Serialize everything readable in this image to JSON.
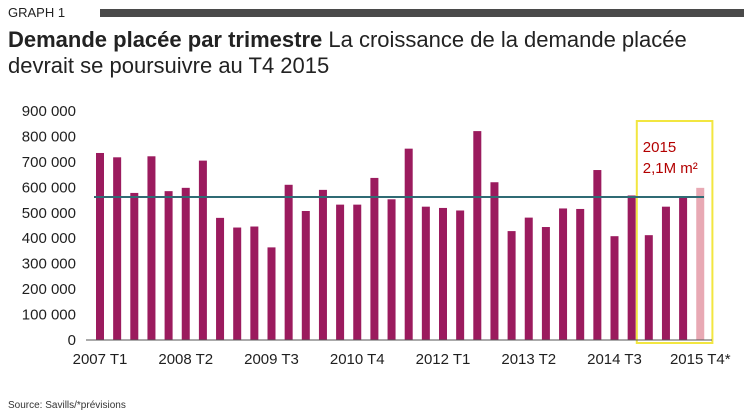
{
  "header": {
    "graph_label": "GRAPH 1",
    "title_bold": "Demande placée par trimestre",
    "title_rest": "La croissance de la demande placée devrait se poursuivre au T4 2015"
  },
  "footer": {
    "source": "Source: Savills/*prévisions"
  },
  "colors": {
    "bar": "#9b1b5e",
    "forecast_bar": "#e8a9b4",
    "average_line": "#2f6b74",
    "highlight_box": "#f2e640",
    "annotation": "#b30000"
  },
  "chart_data": {
    "type": "bar",
    "categories": [
      "2007 T1",
      "2007 T2",
      "2007 T3",
      "2007 T4",
      "2008 T1",
      "2008 T2",
      "2008 T3",
      "2008 T4",
      "2009 T1",
      "2009 T2",
      "2009 T3",
      "2009 T4",
      "2010 T1",
      "2010 T2",
      "2010 T3",
      "2010 T4",
      "2011 T1",
      "2011 T2",
      "2011 T3",
      "2011 T4",
      "2012 T1",
      "2012 T2",
      "2012 T3",
      "2012 T4",
      "2013 T1",
      "2013 T2",
      "2013 T3",
      "2013 T4",
      "2014 T1",
      "2014 T2",
      "2014 T3",
      "2014 T4",
      "2015 T1",
      "2015 T2",
      "2015 T3",
      "2015 T4*"
    ],
    "values": [
      735000,
      718000,
      578000,
      722000,
      585000,
      598000,
      705000,
      480000,
      442000,
      446000,
      364000,
      610000,
      507000,
      590000,
      532000,
      532000,
      637000,
      553000,
      752000,
      524000,
      519000,
      509000,
      821000,
      620000,
      428000,
      481000,
      444000,
      517000,
      515000,
      668000,
      408000,
      568000,
      412000,
      524000,
      563000,
      598000
    ],
    "forecast_from_index": 35,
    "average_line_value": 562000,
    "x_tick_labels": [
      {
        "index": 0,
        "label": "2007 T1"
      },
      {
        "index": 5,
        "label": "2008 T2"
      },
      {
        "index": 10,
        "label": "2009 T3"
      },
      {
        "index": 15,
        "label": "2010 T4"
      },
      {
        "index": 20,
        "label": "2012 T1"
      },
      {
        "index": 25,
        "label": "2013 T2"
      },
      {
        "index": 30,
        "label": "2014 T3"
      },
      {
        "index": 35,
        "label": "2015 T4*"
      }
    ],
    "y_tick_labels": [
      "0",
      "100 000",
      "200 000",
      "300 000",
      "400 000",
      "500 000",
      "600 000",
      "700 000",
      "800 000",
      "900 000"
    ],
    "ylim": [
      0,
      900000
    ],
    "grid": false,
    "highlight": {
      "from_index": 32,
      "to_index": 35,
      "label_year": "2015",
      "label_value": "2,1M m²"
    }
  }
}
